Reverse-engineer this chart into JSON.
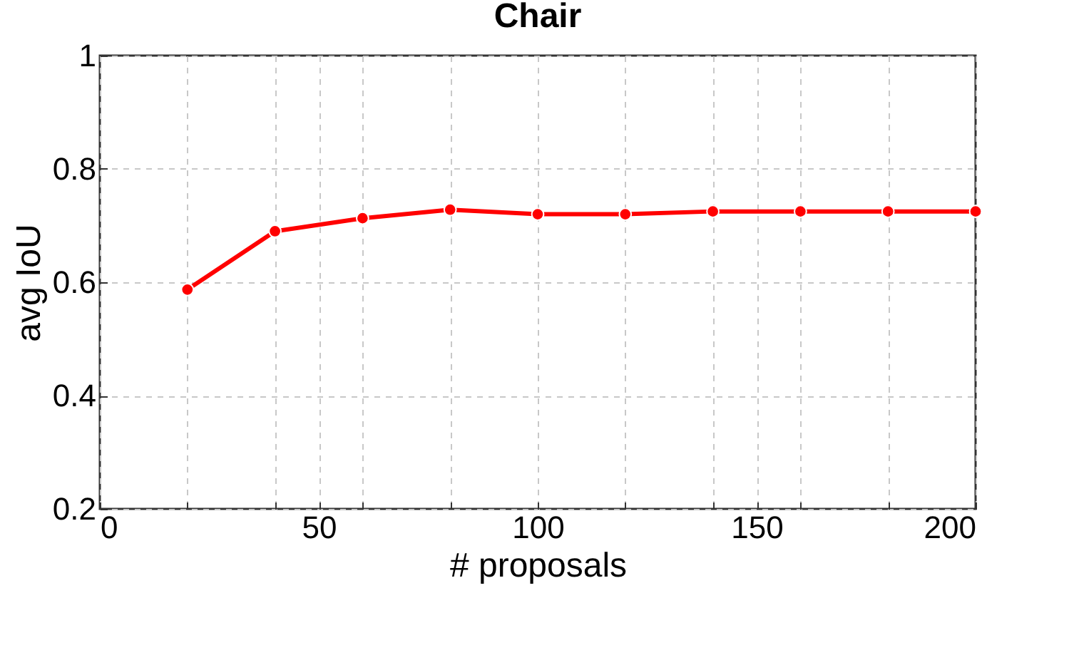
{
  "chart_data": {
    "type": "line",
    "title": "Chair",
    "xlabel": "# proposals",
    "ylabel": "avg IoU",
    "x": [
      20,
      40,
      60,
      80,
      100,
      120,
      140,
      160,
      180,
      200
    ],
    "series": [
      {
        "color": "#ff0000",
        "values": [
          0.587,
          0.69,
          0.713,
          0.728,
          0.72,
          0.72,
          0.725,
          0.725,
          0.725,
          0.725
        ]
      }
    ],
    "xlim": [
      0,
      200
    ],
    "xticks": [
      0,
      {
        "value": 20,
        "label": null
      },
      {
        "value": 40,
        "label": null
      },
      50,
      {
        "value": 60,
        "label": null
      },
      {
        "value": 80,
        "label": null
      },
      100,
      {
        "value": 120,
        "label": null
      },
      {
        "value": 140,
        "label": null
      },
      150,
      {
        "value": 160,
        "label": null
      },
      {
        "value": 180,
        "label": null
      },
      200
    ],
    "ylim": [
      0.2,
      1
    ],
    "yticks": [
      0.2,
      0.4,
      0.6,
      0.8,
      1
    ],
    "grid": true,
    "marker": "circle",
    "line_style": "solid"
  }
}
